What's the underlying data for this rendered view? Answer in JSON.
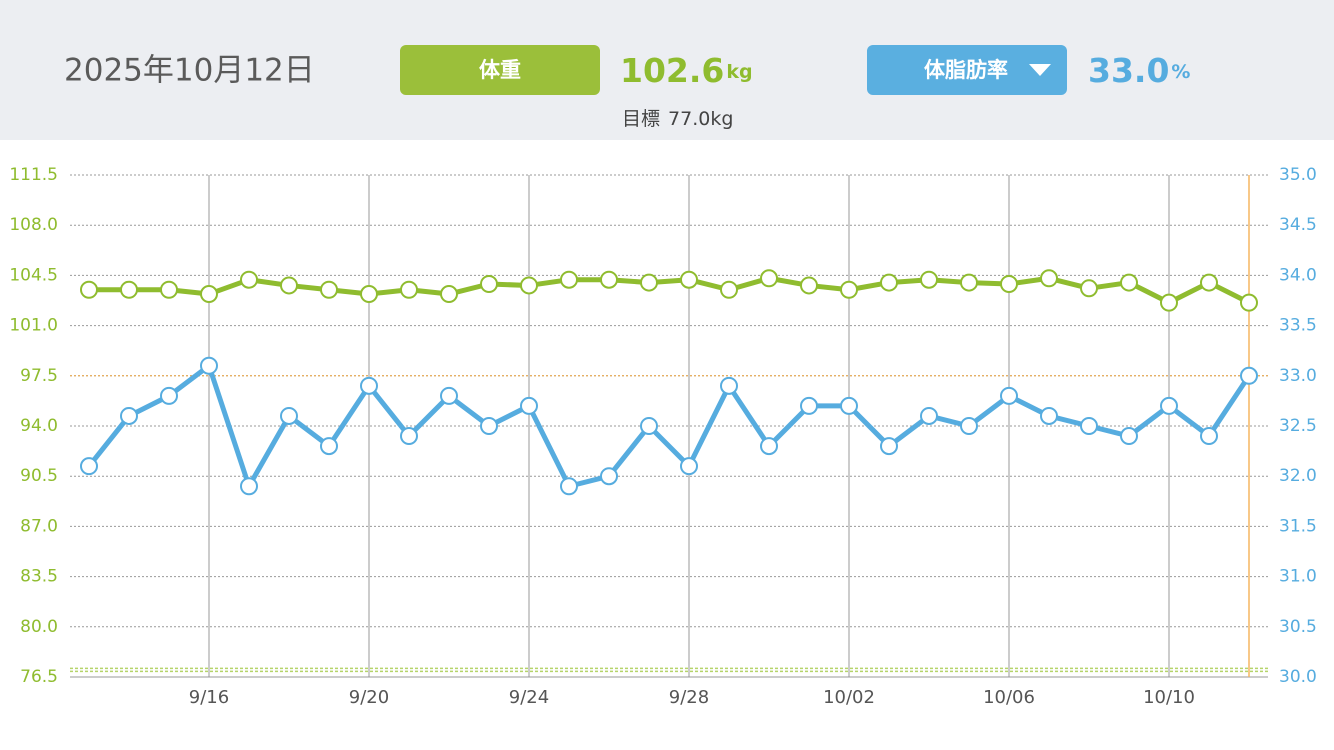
{
  "header": {
    "date": "2025年10月12日",
    "weight": {
      "button": "体重",
      "value": 102.6,
      "unit": "kg",
      "target": {
        "label": "目標",
        "value": 77,
        "value_label": "77.0",
        "unit": "kg"
      }
    },
    "body_fat": {
      "button": "体脂肪率",
      "value": 33,
      "value_label": "33.0",
      "unit": "%"
    }
  },
  "chart_data": {
    "type": "line",
    "categories": [
      null,
      null,
      null,
      "9/16",
      null,
      null,
      null,
      "9/20",
      null,
      null,
      null,
      "9/24",
      null,
      null,
      null,
      "9/28",
      null,
      null,
      null,
      "10/02",
      null,
      null,
      null,
      "10/06",
      null,
      null,
      null,
      "10/10",
      null,
      null
    ],
    "series": [
      {
        "name": "体重",
        "color": "#8fbc2f",
        "axis": "y",
        "values": [
          103.5,
          103.5,
          103.5,
          103.2,
          104.2,
          103.8,
          103.5,
          103.2,
          103.5,
          103.2,
          103.9,
          103.8,
          104.2,
          104.2,
          104.0,
          104.2,
          103.5,
          104.3,
          103.8,
          103.5,
          104.0,
          104.2,
          104.0,
          103.9,
          104.3,
          103.6,
          104.0,
          102.6,
          104.0,
          102.6
        ]
      },
      {
        "name": "体脂肪率",
        "color": "#56acdf",
        "axis": "y2",
        "values": [
          32.1,
          32.6,
          32.8,
          33.1,
          31.9,
          32.6,
          32.3,
          32.9,
          32.4,
          32.8,
          32.5,
          32.7,
          31.9,
          32.0,
          32.5,
          32.1,
          32.9,
          32.3,
          32.7,
          32.7,
          32.3,
          32.6,
          32.5,
          32.8,
          32.6,
          32.5,
          32.4,
          32.7,
          32.4,
          33.0
        ]
      }
    ],
    "ylim": [
      76.5,
      111.5
    ],
    "yticks": [
      76.5,
      {
        "value": 80,
        "label": "80.0"
      },
      83.5,
      {
        "value": 87,
        "label": "87.0"
      },
      90.5,
      {
        "value": 94,
        "label": "94.0"
      },
      97.5,
      {
        "value": 101,
        "label": "101.0"
      },
      104.5,
      {
        "value": 108,
        "label": "108.0"
      },
      111.5
    ],
    "y2lim": [
      30,
      35
    ],
    "y2ticks": [
      {
        "value": 30,
        "label": "30.0"
      },
      30.5,
      {
        "value": 31,
        "label": "31.0"
      },
      31.5,
      {
        "value": 32,
        "label": "32.0"
      },
      32.5,
      {
        "value": 33,
        "label": "33.0"
      },
      33.5,
      {
        "value": 34,
        "label": "34.0"
      },
      34.5,
      {
        "value": 35,
        "label": "35.0"
      }
    ],
    "grid": true
  }
}
